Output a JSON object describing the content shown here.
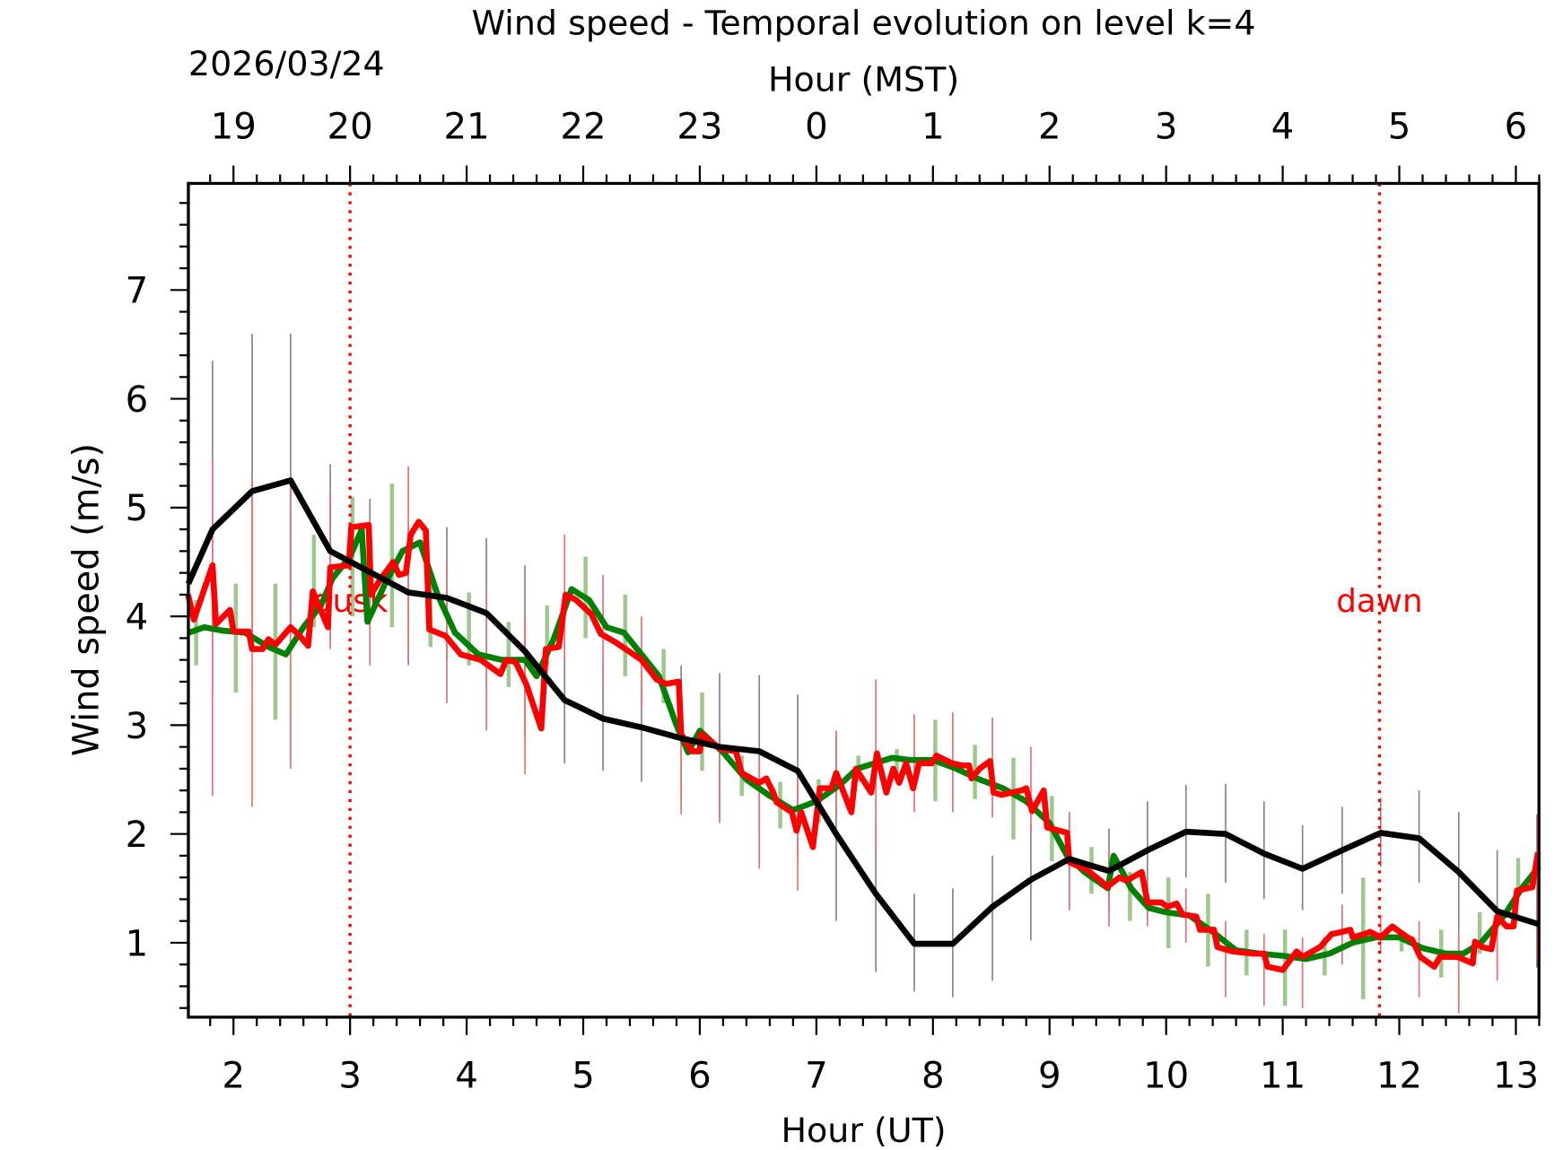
{
  "chart_data": {
    "type": "line",
    "title": "Wind speed - Temporal evolution on level k=4",
    "xlabel": "Hour (UT)",
    "x2label": "Hour (MST)",
    "date_label": "2026/03/24",
    "ylabel": "Wind speed (m/s)",
    "xlim": [
      1.613,
      13.198
    ],
    "ylim": [
      0.316,
      7.98
    ],
    "grid": false,
    "x_ticks": [
      2,
      3,
      4,
      5,
      6,
      7,
      8,
      9,
      10,
      11,
      12,
      13
    ],
    "x_tick_labels": [
      "2",
      "3",
      "4",
      "5",
      "6",
      "7",
      "8",
      "9",
      "10",
      "11",
      "12",
      "13"
    ],
    "x2_tick_labels": [
      "19",
      "20",
      "21",
      "22",
      "23",
      "0",
      "1",
      "2",
      "3",
      "4",
      "5",
      "6"
    ],
    "y_ticks": [
      1,
      2,
      3,
      4,
      5,
      6,
      7
    ],
    "y_tick_labels": [
      "1",
      "2",
      "3",
      "4",
      "5",
      "6",
      "7"
    ],
    "annotations": [
      {
        "text": "dusk",
        "x": 3.0,
        "color": "#ff0000"
      },
      {
        "text": "dawn",
        "x": 11.83,
        "color": "#ff0000"
      }
    ],
    "series": [
      {
        "color": "#000000",
        "x": [
          1.613,
          1.82,
          2.16,
          2.49,
          2.83,
          3.5,
          3.83,
          4.17,
          4.5,
          4.84,
          5.17,
          5.5,
          5.84,
          6.17,
          6.51,
          6.84,
          7.17,
          7.51,
          7.84,
          8.17,
          8.51,
          8.84,
          9.17,
          9.51,
          9.84,
          10.17,
          10.51,
          10.84,
          11.17,
          11.51,
          11.84,
          12.17,
          12.51,
          12.84,
          13.198
        ],
        "y": [
          4.3,
          4.8,
          5.15,
          5.25,
          4.6,
          4.22,
          4.17,
          4.03,
          3.68,
          3.23,
          3.06,
          2.98,
          2.88,
          2.8,
          2.76,
          2.58,
          2.0,
          1.45,
          0.99,
          0.99,
          1.33,
          1.58,
          1.77,
          1.66,
          1.85,
          2.02,
          2.0,
          1.82,
          1.68,
          1.85,
          2.01,
          1.96,
          1.65,
          1.29,
          1.17
        ],
        "error_bars": [
          [
            1.82,
            3.3,
            6.35
          ],
          [
            2.16,
            3.7,
            6.6
          ],
          [
            2.49,
            3.9,
            6.6
          ],
          [
            2.83,
            3.8,
            5.4
          ],
          [
            3.17,
            3.9,
            5.08
          ],
          [
            3.5,
            3.55,
            4.85
          ],
          [
            3.83,
            3.6,
            4.82
          ],
          [
            4.17,
            3.3,
            4.72
          ],
          [
            4.5,
            2.9,
            4.47
          ],
          [
            4.84,
            2.65,
            3.8
          ],
          [
            5.17,
            2.58,
            3.55
          ],
          [
            5.5,
            2.48,
            3.5
          ],
          [
            5.84,
            2.3,
            3.55
          ],
          [
            6.17,
            2.15,
            3.48
          ],
          [
            6.51,
            2.05,
            3.46
          ],
          [
            6.84,
            1.8,
            3.28
          ],
          [
            7.17,
            1.2,
            2.9
          ],
          [
            7.51,
            0.73,
            2.1
          ],
          [
            7.84,
            0.55,
            1.45
          ],
          [
            8.17,
            0.5,
            1.5
          ],
          [
            8.51,
            0.65,
            1.8
          ],
          [
            8.84,
            1.02,
            2.1
          ],
          [
            9.17,
            1.3,
            2.2
          ],
          [
            9.51,
            1.3,
            2.05
          ],
          [
            9.84,
            1.4,
            2.3
          ],
          [
            10.17,
            1.6,
            2.45
          ],
          [
            10.51,
            1.55,
            2.46
          ],
          [
            10.84,
            1.4,
            2.3
          ],
          [
            11.17,
            1.3,
            2.08
          ],
          [
            11.51,
            1.45,
            2.25
          ],
          [
            11.84,
            1.7,
            2.33
          ],
          [
            12.17,
            1.55,
            2.4
          ],
          [
            12.51,
            1.1,
            2.2
          ],
          [
            12.84,
            0.8,
            1.85
          ],
          [
            13.18,
            0.77,
            1.7
          ]
        ],
        "error_color": "#808590"
      },
      {
        "color": "#008000",
        "x": [
          1.613,
          1.75,
          1.9,
          2.1,
          2.3,
          2.45,
          2.6,
          2.75,
          2.85,
          3.0,
          3.1,
          3.15,
          3.3,
          3.45,
          3.6,
          3.75,
          3.9,
          4.1,
          4.3,
          4.5,
          4.6,
          4.75,
          4.9,
          5.05,
          5.2,
          5.35,
          5.5,
          5.65,
          5.8,
          5.9,
          6.0,
          6.2,
          6.4,
          6.6,
          6.8,
          7.0,
          7.2,
          7.35,
          7.5,
          7.65,
          7.8,
          8.0,
          8.2,
          8.4,
          8.6,
          8.8,
          9.0,
          9.15,
          9.3,
          9.5,
          9.55,
          9.7,
          9.85,
          10.0,
          10.2,
          10.4,
          10.6,
          10.8,
          11.0,
          11.2,
          11.4,
          11.6,
          11.8,
          12.0,
          12.2,
          12.4,
          12.55,
          12.7,
          12.9,
          13.05,
          13.198
        ],
        "y": [
          3.85,
          3.9,
          3.87,
          3.85,
          3.72,
          3.65,
          3.9,
          4.1,
          4.35,
          4.55,
          4.8,
          3.95,
          4.3,
          4.6,
          4.68,
          4.2,
          3.85,
          3.65,
          3.6,
          3.6,
          3.45,
          3.8,
          4.25,
          4.15,
          3.9,
          3.85,
          3.65,
          3.45,
          3.0,
          2.75,
          2.95,
          2.75,
          2.5,
          2.35,
          2.22,
          2.3,
          2.45,
          2.6,
          2.65,
          2.7,
          2.68,
          2.68,
          2.6,
          2.5,
          2.42,
          2.3,
          2.1,
          1.8,
          1.65,
          1.5,
          1.8,
          1.5,
          1.32,
          1.28,
          1.25,
          1.1,
          0.93,
          0.9,
          0.88,
          0.85,
          0.9,
          1.0,
          1.05,
          1.05,
          0.95,
          0.9,
          0.9,
          1.0,
          1.25,
          1.5,
          1.7
        ],
        "error_bars": [
          [
            1.68,
            3.55,
            4.15
          ],
          [
            2.02,
            3.3,
            4.3
          ],
          [
            2.36,
            3.05,
            4.3
          ],
          [
            2.69,
            3.9,
            4.75
          ],
          [
            3.02,
            4.0,
            5.1
          ],
          [
            3.36,
            3.9,
            5.22
          ],
          [
            3.69,
            3.72,
            4.42
          ],
          [
            4.02,
            3.55,
            4.22
          ],
          [
            4.36,
            3.35,
            3.95
          ],
          [
            4.69,
            3.55,
            4.1
          ],
          [
            5.02,
            3.8,
            4.55
          ],
          [
            5.36,
            3.45,
            4.2
          ],
          [
            5.69,
            3.2,
            3.7
          ],
          [
            6.02,
            2.58,
            3.3
          ],
          [
            6.36,
            2.35,
            2.72
          ],
          [
            6.69,
            2.05,
            2.48
          ],
          [
            7.02,
            2.1,
            2.5
          ],
          [
            7.36,
            2.48,
            2.72
          ],
          [
            7.69,
            2.5,
            2.78
          ],
          [
            8.02,
            2.3,
            3.05
          ],
          [
            8.36,
            2.32,
            2.82
          ],
          [
            8.69,
            1.95,
            2.7
          ],
          [
            9.02,
            1.75,
            2.35
          ],
          [
            9.36,
            1.45,
            1.88
          ],
          [
            9.69,
            1.2,
            1.65
          ],
          [
            10.02,
            0.95,
            1.6
          ],
          [
            10.36,
            0.78,
            1.45
          ],
          [
            10.69,
            0.7,
            1.12
          ],
          [
            11.02,
            0.42,
            1.12
          ],
          [
            11.36,
            0.7,
            1.05
          ],
          [
            11.69,
            0.48,
            1.6
          ],
          [
            12.02,
            0.92,
            1.1
          ],
          [
            12.36,
            0.68,
            1.12
          ],
          [
            12.69,
            0.9,
            1.28
          ],
          [
            13.02,
            1.5,
            1.78
          ]
        ],
        "error_color": "#9dc88d"
      },
      {
        "color": "#ff0000",
        "x": [
          1.61,
          1.66,
          1.82,
          1.85,
          1.97,
          2.0,
          2.13,
          2.16,
          2.25,
          2.3,
          2.36,
          2.49,
          2.56,
          2.64,
          2.68,
          2.81,
          2.83,
          2.99,
          3.01,
          3.16,
          3.18,
          3.26,
          3.37,
          3.42,
          3.48,
          3.52,
          3.59,
          3.65,
          3.68,
          3.82,
          3.95,
          4.12,
          4.29,
          4.34,
          4.42,
          4.51,
          4.64,
          4.68,
          4.79,
          4.85,
          4.94,
          5.07,
          5.15,
          5.28,
          5.5,
          5.63,
          5.71,
          5.82,
          5.84,
          5.93,
          6.0,
          6.01,
          6.18,
          6.31,
          6.36,
          6.51,
          6.57,
          6.63,
          6.66,
          6.79,
          6.83,
          6.87,
          6.97,
          7.03,
          7.13,
          7.17,
          7.3,
          7.34,
          7.47,
          7.52,
          7.6,
          7.66,
          7.71,
          7.77,
          7.83,
          7.88,
          7.99,
          8.03,
          8.16,
          8.25,
          8.31,
          8.33,
          8.4,
          8.49,
          8.52,
          8.59,
          8.76,
          8.8,
          8.85,
          8.95,
          8.98,
          9.15,
          9.17,
          9.32,
          9.45,
          9.49,
          9.6,
          9.66,
          9.79,
          9.84,
          9.96,
          10.01,
          10.09,
          10.14,
          10.26,
          10.29,
          10.41,
          10.44,
          10.57,
          10.74,
          10.84,
          10.87,
          11.0,
          11.12,
          11.17,
          11.32,
          11.42,
          11.51,
          11.58,
          11.6,
          11.7,
          11.75,
          11.84,
          11.94,
          12.03,
          12.07,
          12.11,
          12.18,
          12.3,
          12.35,
          12.5,
          12.63,
          12.65,
          12.71,
          12.79,
          12.84,
          12.92,
          12.98,
          13.01,
          13.14,
          13.19
        ],
        "y": [
          4.2,
          3.97,
          4.47,
          3.93,
          4.06,
          3.86,
          3.86,
          3.7,
          3.7,
          3.79,
          3.74,
          3.9,
          3.83,
          3.73,
          4.23,
          3.9,
          4.45,
          4.47,
          4.82,
          4.84,
          4.2,
          4.34,
          4.5,
          4.38,
          4.4,
          4.75,
          4.87,
          4.79,
          3.88,
          3.82,
          3.65,
          3.6,
          3.47,
          3.6,
          3.58,
          3.38,
          2.97,
          3.7,
          3.72,
          4.2,
          4.15,
          4.02,
          3.84,
          3.76,
          3.6,
          3.42,
          3.38,
          3.4,
          2.92,
          2.76,
          2.76,
          2.92,
          2.78,
          2.76,
          2.56,
          2.47,
          2.51,
          2.38,
          2.29,
          2.2,
          2.03,
          2.2,
          1.88,
          2.42,
          2.42,
          2.56,
          2.2,
          2.6,
          2.38,
          2.74,
          2.38,
          2.6,
          2.47,
          2.65,
          2.42,
          2.65,
          2.65,
          2.72,
          2.65,
          2.63,
          2.63,
          2.51,
          2.6,
          2.67,
          2.38,
          2.36,
          2.4,
          2.42,
          2.21,
          2.4,
          2.06,
          2.01,
          1.74,
          1.67,
          1.56,
          1.51,
          1.6,
          1.57,
          1.65,
          1.37,
          1.37,
          1.33,
          1.36,
          1.26,
          1.24,
          1.12,
          1.12,
          0.96,
          0.92,
          0.9,
          0.9,
          0.78,
          0.75,
          0.92,
          0.87,
          0.96,
          1.08,
          1.1,
          1.12,
          1.05,
          1.08,
          1.1,
          1.05,
          1.15,
          1.08,
          1.05,
          1.03,
          0.87,
          0.78,
          0.87,
          0.87,
          0.81,
          1.01,
          0.96,
          0.94,
          1.24,
          1.15,
          1.15,
          1.48,
          1.51,
          1.83
        ],
        "error_bars": [
          [
            1.82,
            2.35,
            5.45
          ],
          [
            2.16,
            2.25,
            5.25
          ],
          [
            2.49,
            2.6,
            5.2
          ],
          [
            2.83,
            3.7,
            5.15
          ],
          [
            3.17,
            3.55,
            4.9
          ],
          [
            3.5,
            3.6,
            5.38
          ],
          [
            3.83,
            3.2,
            4.5
          ],
          [
            4.17,
            2.95,
            4.25
          ],
          [
            4.5,
            2.55,
            4.0
          ],
          [
            4.84,
            3.6,
            4.75
          ],
          [
            5.17,
            3.35,
            4.38
          ],
          [
            5.5,
            3.15,
            4.0
          ],
          [
            5.84,
            2.18,
            3.3
          ],
          [
            6.17,
            2.1,
            2.95
          ],
          [
            6.51,
            1.68,
            2.7
          ],
          [
            6.84,
            1.48,
            2.5
          ],
          [
            7.17,
            2.15,
            2.95
          ],
          [
            7.51,
            1.85,
            3.42
          ],
          [
            7.84,
            2.2,
            3.1
          ],
          [
            8.17,
            2.2,
            3.12
          ],
          [
            8.51,
            2.15,
            3.07
          ],
          [
            8.84,
            2.0,
            2.8
          ],
          [
            9.17,
            1.32,
            2.2
          ],
          [
            9.51,
            1.15,
            1.85
          ],
          [
            9.84,
            1.15,
            1.55
          ],
          [
            10.17,
            1.0,
            1.5
          ],
          [
            10.51,
            0.5,
            1.2
          ],
          [
            10.84,
            0.42,
            1.08
          ],
          [
            11.17,
            0.4,
            1.05
          ],
          [
            11.51,
            0.8,
            1.35
          ],
          [
            11.84,
            0.9,
            1.25
          ],
          [
            12.17,
            0.5,
            1.2
          ],
          [
            12.51,
            0.35,
            1.1
          ],
          [
            12.84,
            0.65,
            1.3
          ],
          [
            13.18,
            0.85,
            2.18
          ]
        ],
        "error_color": "#e87070"
      }
    ]
  }
}
